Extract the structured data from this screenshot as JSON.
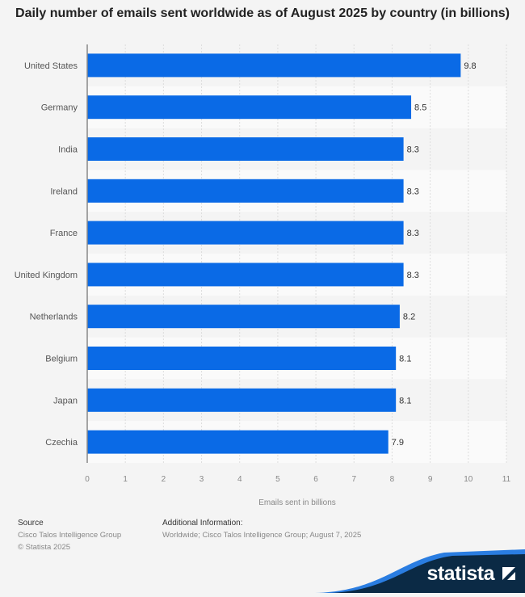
{
  "chart_data": {
    "type": "bar",
    "orientation": "horizontal",
    "title": "Daily number of emails sent worldwide as of August 2025 by country (in billions)",
    "categories": [
      "United States",
      "Germany",
      "India",
      "Ireland",
      "France",
      "United Kingdom",
      "Netherlands",
      "Belgium",
      "Japan",
      "Czechia"
    ],
    "values": [
      9.8,
      8.5,
      8.3,
      8.3,
      8.3,
      8.3,
      8.2,
      8.1,
      8.1,
      7.9
    ],
    "xlabel": "Emails sent in billions",
    "ylabel": "",
    "xlim": [
      0,
      11
    ],
    "ticks": [
      "0",
      "1",
      "2",
      "3",
      "4",
      "5",
      "6",
      "7",
      "8",
      "9",
      "10",
      "11"
    ],
    "grid": true,
    "bar_color": "#0a6ae6"
  },
  "footer": {
    "source_heading": "Source",
    "source_text": "Cisco Talos Intelligence Group",
    "copyright": "© Statista 2025",
    "additional_heading": "Additional Information:",
    "additional_text": "Worldwide; Cisco Talos Intelligence Group; August 7, 2025"
  },
  "brand": {
    "logo_text": "statista",
    "dark_color": "#0b2a45",
    "accent_color": "#2a7de1"
  }
}
